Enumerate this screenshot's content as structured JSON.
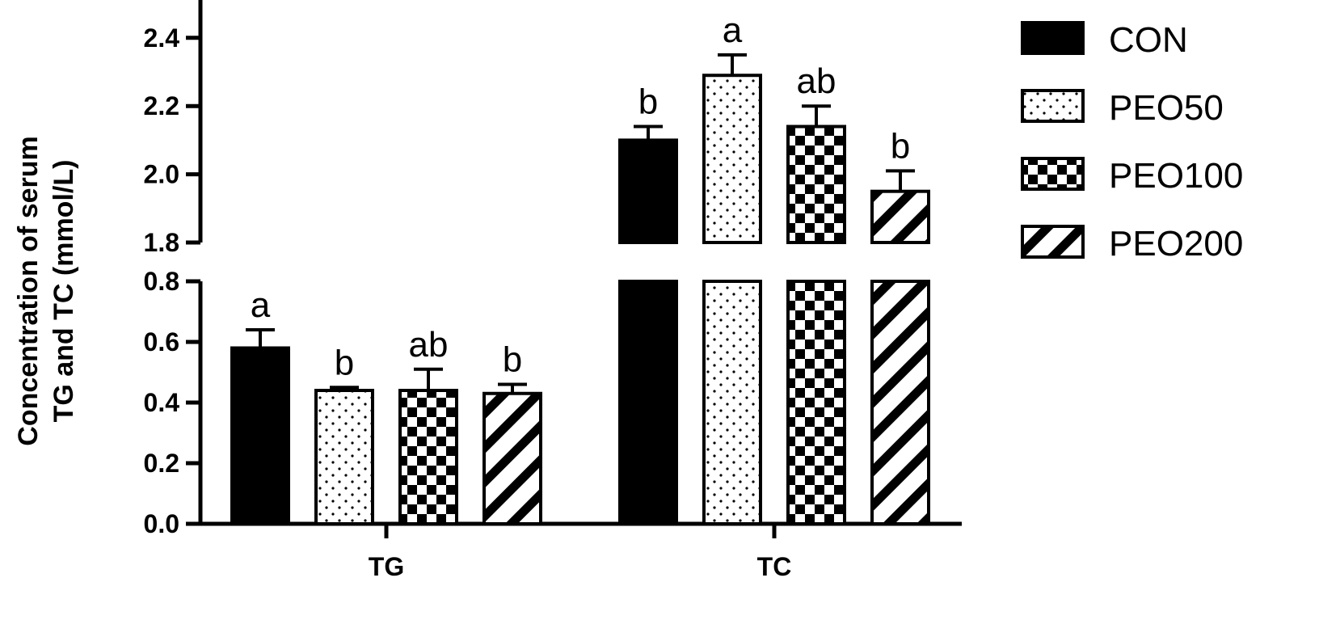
{
  "chart_data": {
    "type": "bar",
    "categories": [
      "TG",
      "TC"
    ],
    "ylabel_lines": [
      "Concentration of serum",
      "TG and TC (mmol/L)"
    ],
    "y_axis": {
      "broken": true,
      "lower_segment": {
        "ylim": [
          0.0,
          0.8
        ],
        "ticks": [
          "0.0",
          "0.2",
          "0.4",
          "0.6",
          "0.8"
        ]
      },
      "upper_segment": {
        "ylim": [
          1.8,
          2.5
        ],
        "ticks": [
          "1.8",
          "2.0",
          "2.2",
          "2.4"
        ]
      }
    },
    "series": [
      {
        "name": "CON",
        "pattern": "solid",
        "values": [
          0.58,
          2.1
        ],
        "errors": [
          0.06,
          0.04
        ],
        "sig": [
          "a",
          "b"
        ]
      },
      {
        "name": "PEO50",
        "pattern": "dots",
        "values": [
          0.44,
          2.29
        ],
        "errors": [
          0.01,
          0.06
        ],
        "sig": [
          "b",
          "a"
        ]
      },
      {
        "name": "PEO100",
        "pattern": "checker",
        "values": [
          0.44,
          2.14
        ],
        "errors": [
          0.07,
          0.06
        ],
        "sig": [
          "ab",
          "ab"
        ]
      },
      {
        "name": "PEO200",
        "pattern": "diagonal",
        "values": [
          0.43,
          1.95
        ],
        "errors": [
          0.03,
          0.06
        ],
        "sig": [
          "b",
          "b"
        ]
      }
    ],
    "grid": false,
    "legend_position": "right"
  }
}
